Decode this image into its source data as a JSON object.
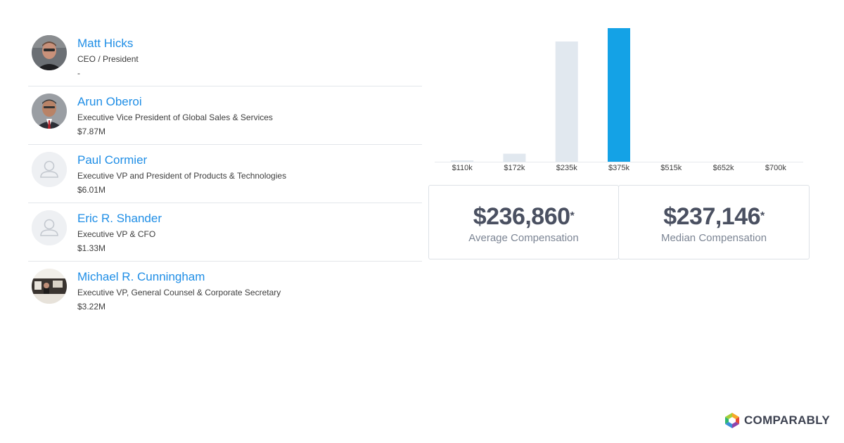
{
  "executives": [
    {
      "name": "Matt Hicks",
      "title": "CEO / President",
      "compensation": "-",
      "avatar": "photo"
    },
    {
      "name": "Arun Oberoi",
      "title": "Executive Vice President of Global Sales & Services",
      "compensation": "$7.87M",
      "avatar": "photo"
    },
    {
      "name": "Paul Cormier",
      "title": "Executive VP and President of Products & Technologies",
      "compensation": "$6.01M",
      "avatar": "placeholder"
    },
    {
      "name": "Eric R. Shander",
      "title": "Executive VP & CFO",
      "compensation": "$1.33M",
      "avatar": "placeholder"
    },
    {
      "name": "Michael R. Cunningham",
      "title": "Executive VP, General Counsel & Corporate Secretary",
      "compensation": "$3.22M",
      "avatar": "photo"
    }
  ],
  "chart_data": {
    "type": "bar",
    "title": "",
    "xlabel": "",
    "ylabel": "",
    "categories": [
      "$110k",
      "$172k",
      "$235k",
      "$375k",
      "$515k",
      "$652k",
      "$700k"
    ],
    "values": [
      1,
      6,
      90,
      100,
      0,
      0,
      0
    ],
    "highlight_index": 3,
    "ylim": [
      0,
      100
    ],
    "grid": false
  },
  "stats": {
    "average": {
      "value": "$236,860",
      "mark": "*",
      "label": "Average Compensation"
    },
    "median": {
      "value": "$237,146",
      "mark": "*",
      "label": "Median Compensation"
    }
  },
  "brand": {
    "name": "COMPARABLY"
  },
  "colors": {
    "accent": "#1f8ee6",
    "bar_highlight": "#14a2e6",
    "bar_default": "#e1e8ef"
  }
}
